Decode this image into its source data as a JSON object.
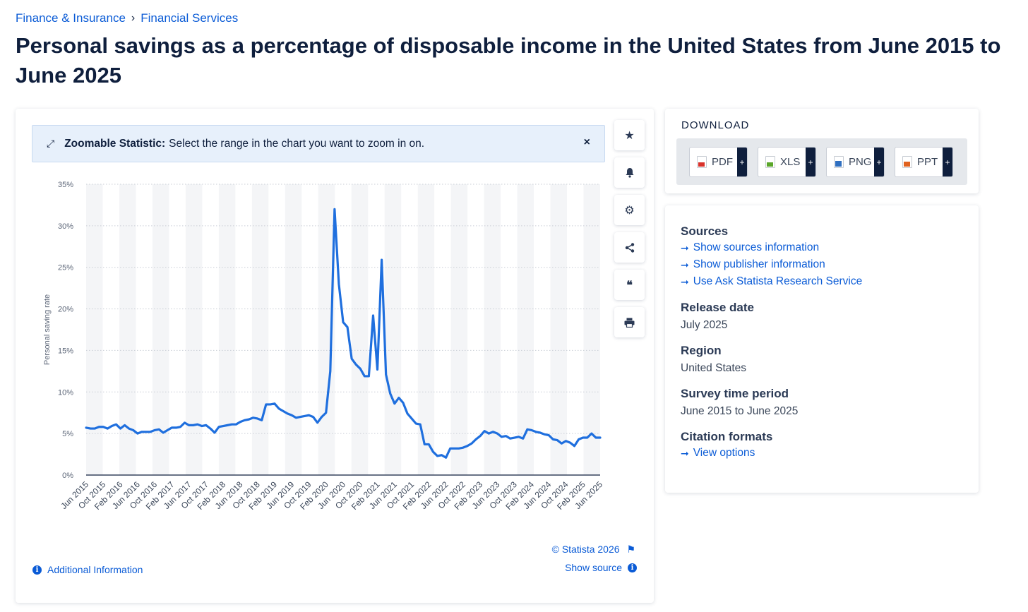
{
  "breadcrumb": {
    "item1": "Finance & Insurance",
    "sep": "›",
    "item2": "Financial Services"
  },
  "title": "Personal savings as a percentage of disposable income in the United States from June 2015 to June 2025",
  "zoom_banner": {
    "bold": "Zoomable Statistic:",
    "text": "Select the range in the chart you want to zoom in on.",
    "close": "×"
  },
  "chart_footer": {
    "credit": "© Statista 2026",
    "show_source": "Show source",
    "additional_info": "Additional Information"
  },
  "download": {
    "title": "DOWNLOAD",
    "buttons": [
      {
        "label": "PDF",
        "color": "#d9322b"
      },
      {
        "label": "XLS",
        "color": "#5aa62a"
      },
      {
        "label": "PNG",
        "color": "#2f6fc0"
      },
      {
        "label": "PPT",
        "color": "#e0621f"
      }
    ],
    "plus": "+"
  },
  "info": {
    "sources_heading": "Sources",
    "source_links": [
      "Show sources information",
      "Show publisher information",
      "Use Ask Statista Research Service"
    ],
    "release_heading": "Release date",
    "release_value": "July 2025",
    "region_heading": "Region",
    "region_value": "United States",
    "period_heading": "Survey time period",
    "period_value": "June 2015 to June 2025",
    "citation_heading": "Citation formats",
    "citation_link": "View options"
  },
  "colors": {
    "line": "#1f6fde",
    "accent": "#0a5bd6",
    "text": "#0f1f3d"
  },
  "chart_data": {
    "type": "line",
    "ylabel": "Personal saving rate",
    "ylim": [
      0,
      35
    ],
    "y_ticks": [
      "0%",
      "5%",
      "10%",
      "15%",
      "20%",
      "25%",
      "30%",
      "35%"
    ],
    "x_tick_labels": [
      "Jun 2015",
      "Oct 2015",
      "Feb 2016",
      "Jun 2016",
      "Oct 2016",
      "Feb 2017",
      "Jun 2017",
      "Oct 2017",
      "Feb 2018",
      "Jun 2018",
      "Oct 2018",
      "Feb 2019",
      "Jun 2019",
      "Oct 2019",
      "Feb 2020",
      "Jun 2020",
      "Oct 2020",
      "Feb 2021",
      "Jun 2021",
      "Oct 2021",
      "Feb 2022",
      "Jun 2022",
      "Oct 2022",
      "Feb 2023",
      "Jun 2023",
      "Oct 2023",
      "Feb 2024",
      "Jun 2024",
      "Oct 2024",
      "Feb 2025",
      "Jun 2025"
    ],
    "series": [
      {
        "name": "Personal saving rate",
        "values": [
          5.7,
          5.6,
          5.6,
          5.8,
          5.8,
          5.6,
          5.9,
          6.1,
          5.6,
          6.0,
          5.6,
          5.4,
          5.0,
          5.2,
          5.2,
          5.2,
          5.4,
          5.5,
          5.1,
          5.4,
          5.7,
          5.7,
          5.8,
          6.3,
          6.0,
          6.0,
          6.1,
          5.9,
          6.0,
          5.6,
          5.1,
          5.8,
          5.9,
          6.0,
          6.1,
          6.1,
          6.4,
          6.6,
          6.7,
          6.9,
          6.8,
          6.6,
          8.5,
          8.5,
          8.6,
          8.0,
          7.7,
          7.4,
          7.2,
          6.9,
          7.0,
          7.1,
          7.2,
          7.0,
          6.3,
          7.0,
          7.5,
          12.5,
          32.0,
          23.0,
          18.4,
          17.8,
          14.0,
          13.3,
          12.8,
          11.9,
          11.9,
          19.2,
          12.7,
          25.9,
          12.1,
          9.8,
          8.6,
          9.3,
          8.7,
          7.4,
          6.8,
          6.2,
          6.1,
          3.7,
          3.7,
          2.8,
          2.3,
          2.4,
          2.1,
          3.2,
          3.2,
          3.2,
          3.3,
          3.5,
          3.8,
          4.3,
          4.7,
          5.3,
          5.0,
          5.2,
          5.0,
          4.6,
          4.7,
          4.4,
          4.5,
          4.6,
          4.4,
          5.5,
          5.4,
          5.2,
          5.1,
          4.9,
          4.8,
          4.3,
          4.2,
          3.8,
          4.1,
          3.9,
          3.5,
          4.3,
          4.5,
          4.5,
          5.0,
          4.5,
          4.5
        ]
      }
    ]
  }
}
